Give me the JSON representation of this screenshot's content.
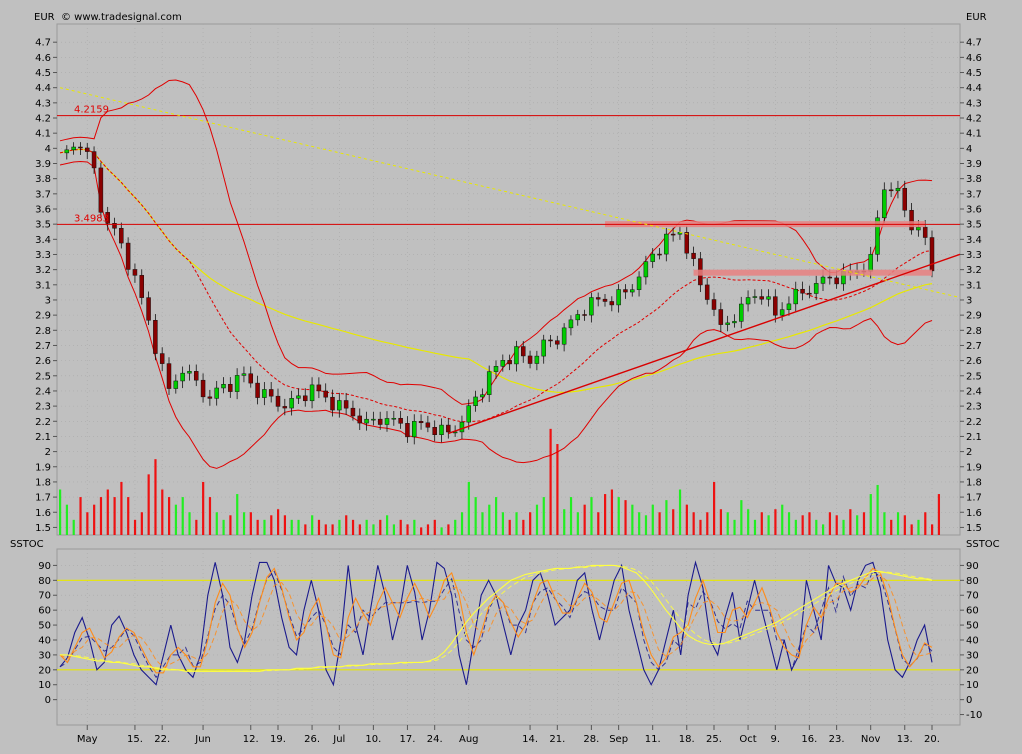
{
  "header": {
    "currency_left": "EUR",
    "currency_right": "EUR",
    "copyright": "© www.tradesignal.com",
    "indicator_left": "SSTOC",
    "indicator_right": "SSTOC"
  },
  "colors": {
    "background": "#c0c0c0",
    "grid": "#a9a9a9",
    "up_candle": "#00cc00",
    "down_candle": "#8b0000",
    "bollinger": "#e00000",
    "sma": "#e8e800",
    "resistance": "#d80000",
    "zone": "#e88080",
    "stoch_fast": "#1a1a8c",
    "stoch_slow": "#ff8c1a",
    "stoch_long": "#ffff40"
  },
  "chart_data": [
    {
      "type": "candlestick",
      "title": "EUR",
      "ylim": [
        1.45,
        4.82
      ],
      "yticks": [
        1.5,
        1.6,
        1.7,
        1.8,
        1.9,
        2,
        2.1,
        2.2,
        2.3,
        2.4,
        2.5,
        2.6,
        2.7,
        2.8,
        2.9,
        3,
        3.1,
        3.2,
        3.3,
        3.4,
        3.5,
        3.6,
        3.7,
        3.8,
        3.9,
        4,
        4.1,
        4.2,
        4.3,
        4.4,
        4.5,
        4.6,
        4.7
      ],
      "ytick_labels": [
        "1.5",
        "1.6",
        "1.7",
        "1.8",
        "1.9",
        "2",
        "2.1",
        "2.2",
        "2.3",
        "2.4",
        "2.5",
        "2.6",
        "2.7",
        "2.8",
        "2.9",
        "3",
        "3.1",
        "3.2",
        "3.3",
        "3.4",
        "3.5",
        "3.6",
        "3.7",
        "3.8",
        "3.9",
        "4",
        "4.1",
        "4.2",
        "4.3",
        "4.4",
        "4.5",
        "4.6",
        "4.7"
      ],
      "x_count": 128,
      "x_ticks": [
        {
          "label": "May",
          "i": 4
        },
        {
          "label": "15.",
          "i": 11
        },
        {
          "label": "22.",
          "i": 15
        },
        {
          "label": "Jun",
          "i": 21
        },
        {
          "label": "12.",
          "i": 28
        },
        {
          "label": "19.",
          "i": 32
        },
        {
          "label": "26.",
          "i": 37
        },
        {
          "label": "Jul",
          "i": 41
        },
        {
          "label": "10.",
          "i": 46
        },
        {
          "label": "17.",
          "i": 51
        },
        {
          "label": "24.",
          "i": 55
        },
        {
          "label": "Aug",
          "i": 60
        },
        {
          "label": "14.",
          "i": 69
        },
        {
          "label": "21.",
          "i": 73
        },
        {
          "label": "28.",
          "i": 78
        },
        {
          "label": "Sep",
          "i": 82
        },
        {
          "label": "11.",
          "i": 87
        },
        {
          "label": "18.",
          "i": 92
        },
        {
          "label": "25.",
          "i": 96
        },
        {
          "label": "Oct",
          "i": 101
        },
        {
          "label": "9.",
          "i": 105
        },
        {
          "label": "16.",
          "i": 110
        },
        {
          "label": "23.",
          "i": 114
        },
        {
          "label": "Nov",
          "i": 119
        },
        {
          "label": "13.",
          "i": 124
        },
        {
          "label": "20.",
          "i": 128
        }
      ],
      "close_anchors": [
        [
          0,
          3.95
        ],
        [
          2,
          4.0
        ],
        [
          3,
          4.05
        ],
        [
          5,
          3.85
        ],
        [
          6,
          3.6
        ],
        [
          8,
          3.45
        ],
        [
          9,
          3.35
        ],
        [
          11,
          3.15
        ],
        [
          12,
          3.0
        ],
        [
          14,
          2.7
        ],
        [
          15,
          2.55
        ],
        [
          16,
          2.4
        ],
        [
          18,
          2.55
        ],
        [
          20,
          2.45
        ],
        [
          22,
          2.35
        ],
        [
          23,
          2.4
        ],
        [
          25,
          2.45
        ],
        [
          27,
          2.5
        ],
        [
          29,
          2.4
        ],
        [
          31,
          2.35
        ],
        [
          33,
          2.3
        ],
        [
          35,
          2.35
        ],
        [
          37,
          2.42
        ],
        [
          39,
          2.35
        ],
        [
          41,
          2.3
        ],
        [
          43,
          2.25
        ],
        [
          45,
          2.18
        ],
        [
          47,
          2.22
        ],
        [
          49,
          2.2
        ],
        [
          51,
          2.15
        ],
        [
          53,
          2.18
        ],
        [
          55,
          2.15
        ],
        [
          57,
          2.12
        ],
        [
          59,
          2.2
        ],
        [
          61,
          2.35
        ],
        [
          63,
          2.5
        ],
        [
          65,
          2.6
        ],
        [
          67,
          2.65
        ],
        [
          69,
          2.6
        ],
        [
          71,
          2.7
        ],
        [
          73,
          2.75
        ],
        [
          75,
          2.85
        ],
        [
          77,
          2.95
        ],
        [
          79,
          3.0
        ],
        [
          81,
          3.0
        ],
        [
          83,
          3.05
        ],
        [
          85,
          3.15
        ],
        [
          87,
          3.3
        ],
        [
          89,
          3.4
        ],
        [
          91,
          3.45
        ],
        [
          92,
          3.35
        ],
        [
          94,
          3.1
        ],
        [
          96,
          2.95
        ],
        [
          97,
          2.8
        ],
        [
          99,
          2.9
        ],
        [
          101,
          3.0
        ],
        [
          103,
          3.05
        ],
        [
          105,
          2.9
        ],
        [
          107,
          3.0
        ],
        [
          109,
          3.05
        ],
        [
          111,
          3.1
        ],
        [
          113,
          3.15
        ],
        [
          115,
          3.15
        ],
        [
          117,
          3.2
        ],
        [
          119,
          3.25
        ],
        [
          120,
          3.55
        ],
        [
          121,
          3.75
        ],
        [
          123,
          3.7
        ],
        [
          124,
          3.6
        ],
        [
          125,
          3.5
        ],
        [
          126,
          3.45
        ],
        [
          127,
          3.4
        ],
        [
          128,
          3.2
        ]
      ],
      "volume": [
        1.75,
        1.65,
        1.55,
        1.7,
        1.6,
        1.65,
        1.7,
        1.75,
        1.7,
        1.8,
        1.7,
        1.55,
        1.6,
        1.85,
        1.95,
        1.75,
        1.7,
        1.65,
        1.7,
        1.6,
        1.55,
        1.8,
        1.7,
        1.6,
        1.55,
        1.58,
        1.72,
        1.6,
        1.6,
        1.55,
        1.55,
        1.58,
        1.62,
        1.58,
        1.55,
        1.55,
        1.52,
        1.58,
        1.55,
        1.52,
        1.52,
        1.55,
        1.58,
        1.55,
        1.52,
        1.55,
        1.52,
        1.55,
        1.58,
        1.52,
        1.55,
        1.52,
        1.55,
        1.5,
        1.52,
        1.55,
        1.5,
        1.52,
        1.55,
        1.6,
        1.8,
        1.7,
        1.6,
        1.65,
        1.7,
        1.6,
        1.55,
        1.6,
        1.55,
        1.6,
        1.65,
        1.7,
        2.15,
        2.05,
        1.62,
        1.7,
        1.6,
        1.65,
        1.7,
        1.6,
        1.72,
        1.75,
        1.7,
        1.68,
        1.65,
        1.6,
        1.58,
        1.65,
        1.6,
        1.68,
        1.62,
        1.75,
        1.65,
        1.6,
        1.55,
        1.6,
        1.8,
        1.62,
        1.6,
        1.55,
        1.68,
        1.62,
        1.55,
        1.6,
        1.58,
        1.62,
        1.65,
        1.6,
        1.55,
        1.58,
        1.6,
        1.55,
        1.52,
        1.6,
        1.58,
        1.55,
        1.62,
        1.58,
        1.6,
        1.72,
        1.78,
        1.6,
        1.55,
        1.6,
        1.58,
        1.52,
        1.55,
        1.6,
        1.52,
        1.72
      ],
      "horizontal_levels": [
        {
          "value": 4.2159,
          "label": "4.2159"
        },
        {
          "value": 3.4983,
          "label": "3.4983"
        }
      ],
      "resistance_zones": [
        {
          "value": 3.5,
          "from_i": 80,
          "to_i": 127
        },
        {
          "value": 3.18,
          "from_i": 93,
          "to_i": 128
        }
      ],
      "trendlines": [
        {
          "from": [
            57,
            2.12
          ],
          "to": [
            128,
            3.25
          ],
          "style": "solid"
        },
        {
          "from": [
            0,
            4.4
          ],
          "to": [
            128,
            3.05
          ],
          "style": "dashed"
        }
      ]
    },
    {
      "type": "line",
      "title": "SSTOC",
      "ylim": [
        -17,
        101
      ],
      "yticks": [
        -10,
        0,
        10,
        20,
        30,
        40,
        50,
        60,
        70,
        80,
        90
      ],
      "ytick_labels": [
        "-10",
        "0",
        "10",
        "20",
        "30",
        "40",
        "50",
        "60",
        "70",
        "80",
        "90"
      ],
      "left_yticks": [
        0,
        10,
        20,
        30,
        40,
        50,
        60,
        70,
        80,
        90
      ],
      "left_ytick_labels": [
        "0",
        "10",
        "20",
        "30",
        "40",
        "50",
        "60",
        "70",
        "80",
        "90"
      ],
      "reference_lines": [
        80,
        20
      ],
      "series": [
        {
          "key": "fast",
          "values": [
            22,
            28,
            45,
            55,
            40,
            20,
            25,
            50,
            56,
            45,
            30,
            20,
            15,
            10,
            30,
            50,
            30,
            20,
            15,
            30,
            70,
            92,
            70,
            35,
            25,
            40,
            70,
            92,
            92,
            80,
            55,
            35,
            30,
            60,
            80,
            60,
            20,
            10,
            40,
            90,
            50,
            30,
            60,
            90,
            70,
            40,
            60,
            90,
            72,
            40,
            60,
            92,
            88,
            70,
            30,
            10,
            40,
            70,
            80,
            70,
            50,
            30,
            50,
            60,
            80,
            85,
            70,
            50,
            55,
            60,
            80,
            85,
            60,
            40,
            60,
            80,
            90,
            60,
            40,
            20,
            10,
            20,
            40,
            60,
            30,
            70,
            92,
            75,
            40,
            30,
            55,
            72,
            40,
            60,
            80,
            60,
            40,
            20,
            40,
            20,
            30,
            80,
            60,
            40,
            90,
            78,
            75,
            60,
            80,
            90,
            92,
            75,
            40,
            20,
            15,
            25,
            40,
            50,
            25
          ]
        },
        {
          "key": "slow",
          "values": [
            30,
            25,
            35,
            45,
            48,
            38,
            28,
            32,
            42,
            48,
            45,
            35,
            25,
            18,
            18,
            30,
            35,
            30,
            22,
            22,
            40,
            65,
            78,
            70,
            48,
            35,
            45,
            65,
            82,
            88,
            75,
            55,
            40,
            45,
            60,
            68,
            50,
            30,
            28,
            55,
            68,
            58,
            50,
            65,
            75,
            65,
            55,
            68,
            78,
            68,
            55,
            65,
            80,
            85,
            70,
            45,
            30,
            45,
            62,
            70,
            65,
            52,
            42,
            50,
            65,
            78,
            80,
            68,
            58,
            58,
            68,
            78,
            72,
            55,
            52,
            65,
            78,
            80,
            65,
            45,
            30,
            22,
            28,
            42,
            45,
            50,
            68,
            80,
            65,
            45,
            45,
            60,
            62,
            55,
            65,
            75,
            62,
            45,
            35,
            30,
            28,
            50,
            62,
            55,
            68,
            78,
            78,
            72,
            75,
            82,
            88,
            85,
            70,
            48,
            30,
            22,
            28,
            38,
            35
          ]
        },
        {
          "key": "long",
          "values": [
            30,
            30,
            29,
            28,
            27,
            26,
            26,
            25,
            25,
            24,
            23,
            22,
            22,
            21,
            20,
            20,
            20,
            19,
            19,
            19,
            19,
            19,
            19,
            19,
            19,
            19,
            19,
            19,
            20,
            20,
            20,
            20,
            21,
            21,
            21,
            22,
            22,
            22,
            22,
            23,
            23,
            23,
            24,
            24,
            24,
            24,
            25,
            25,
            25,
            25,
            26,
            28,
            32,
            38,
            45,
            52,
            58,
            63,
            68,
            72,
            76,
            80,
            82,
            84,
            85,
            86,
            87,
            88,
            88,
            88,
            89,
            89,
            90,
            90,
            90,
            90,
            89,
            87,
            85,
            80,
            74,
            67,
            60,
            54,
            48,
            43,
            40,
            38,
            37,
            37,
            38,
            40,
            42,
            44,
            46,
            48,
            50,
            52,
            55,
            58,
            61,
            64,
            67,
            70,
            73,
            76,
            78,
            80,
            82,
            84,
            86,
            86,
            85,
            84,
            83,
            82,
            81,
            81,
            80
          ]
        }
      ]
    }
  ]
}
